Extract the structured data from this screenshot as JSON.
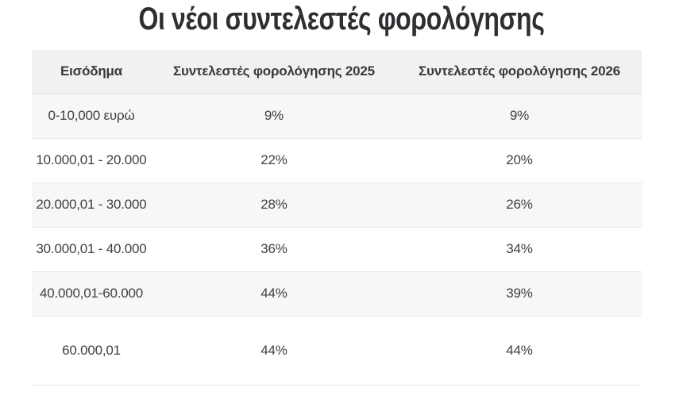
{
  "title": "Οι νέοι συντελεστές φορολόγησης",
  "colors": {
    "title_text": "#2d2f33",
    "header_background": "#f1f1f1",
    "stripe_row_background": "#f7f7f7",
    "row_background": "#ffffff",
    "divider": "#e7e7e7",
    "cell_text": "#3d3f42"
  },
  "table": {
    "headers": [
      "Εισόδημα",
      "Συντελεστές φορολόγησης 2025",
      "Συντελεστές φορολόγησης 2026"
    ],
    "rows": [
      [
        "0-10,000 ευρώ",
        "9%",
        "9%"
      ],
      [
        "10.000,01 - 20.000",
        "22%",
        "20%"
      ],
      [
        "20.000,01 - 30.000",
        "28%",
        "26%"
      ],
      [
        "30.000,01 - 40.000",
        "36%",
        "34%"
      ],
      [
        "40.000,01-60.000",
        "44%",
        "39%"
      ],
      [
        "60.000,01",
        "44%",
        "44%"
      ]
    ]
  },
  "chart_data": {
    "type": "table",
    "title": "Οι νέοι συντελεστές φορολόγησης",
    "columns": [
      "Εισόδημα",
      "Συντελεστές φορολόγησης 2025",
      "Συντελεστές φορολόγησης 2026"
    ],
    "rows": [
      [
        "0-10,000 ευρώ",
        "9%",
        "9%"
      ],
      [
        "10.000,01 - 20.000",
        "22%",
        "20%"
      ],
      [
        "20.000,01 - 30.000",
        "28%",
        "26%"
      ],
      [
        "30.000,01 - 40.000",
        "36%",
        "34%"
      ],
      [
        "40.000,01-60.000",
        "44%",
        "39%"
      ],
      [
        "60.000,01",
        "44%",
        "44%"
      ]
    ],
    "series_numeric": [
      {
        "name": "Συντελεστές φορολόγησης 2025",
        "values": [
          9,
          22,
          28,
          36,
          44,
          44
        ]
      },
      {
        "name": "Συντελεστές φορολόγησης 2026",
        "values": [
          9,
          20,
          26,
          34,
          39,
          44
        ]
      }
    ],
    "categories": [
      "0-10,000 ευρώ",
      "10.000,01 - 20.000",
      "20.000,01 - 30.000",
      "30.000,01 - 40.000",
      "40.000,01-60.000",
      "60.000,01"
    ]
  }
}
